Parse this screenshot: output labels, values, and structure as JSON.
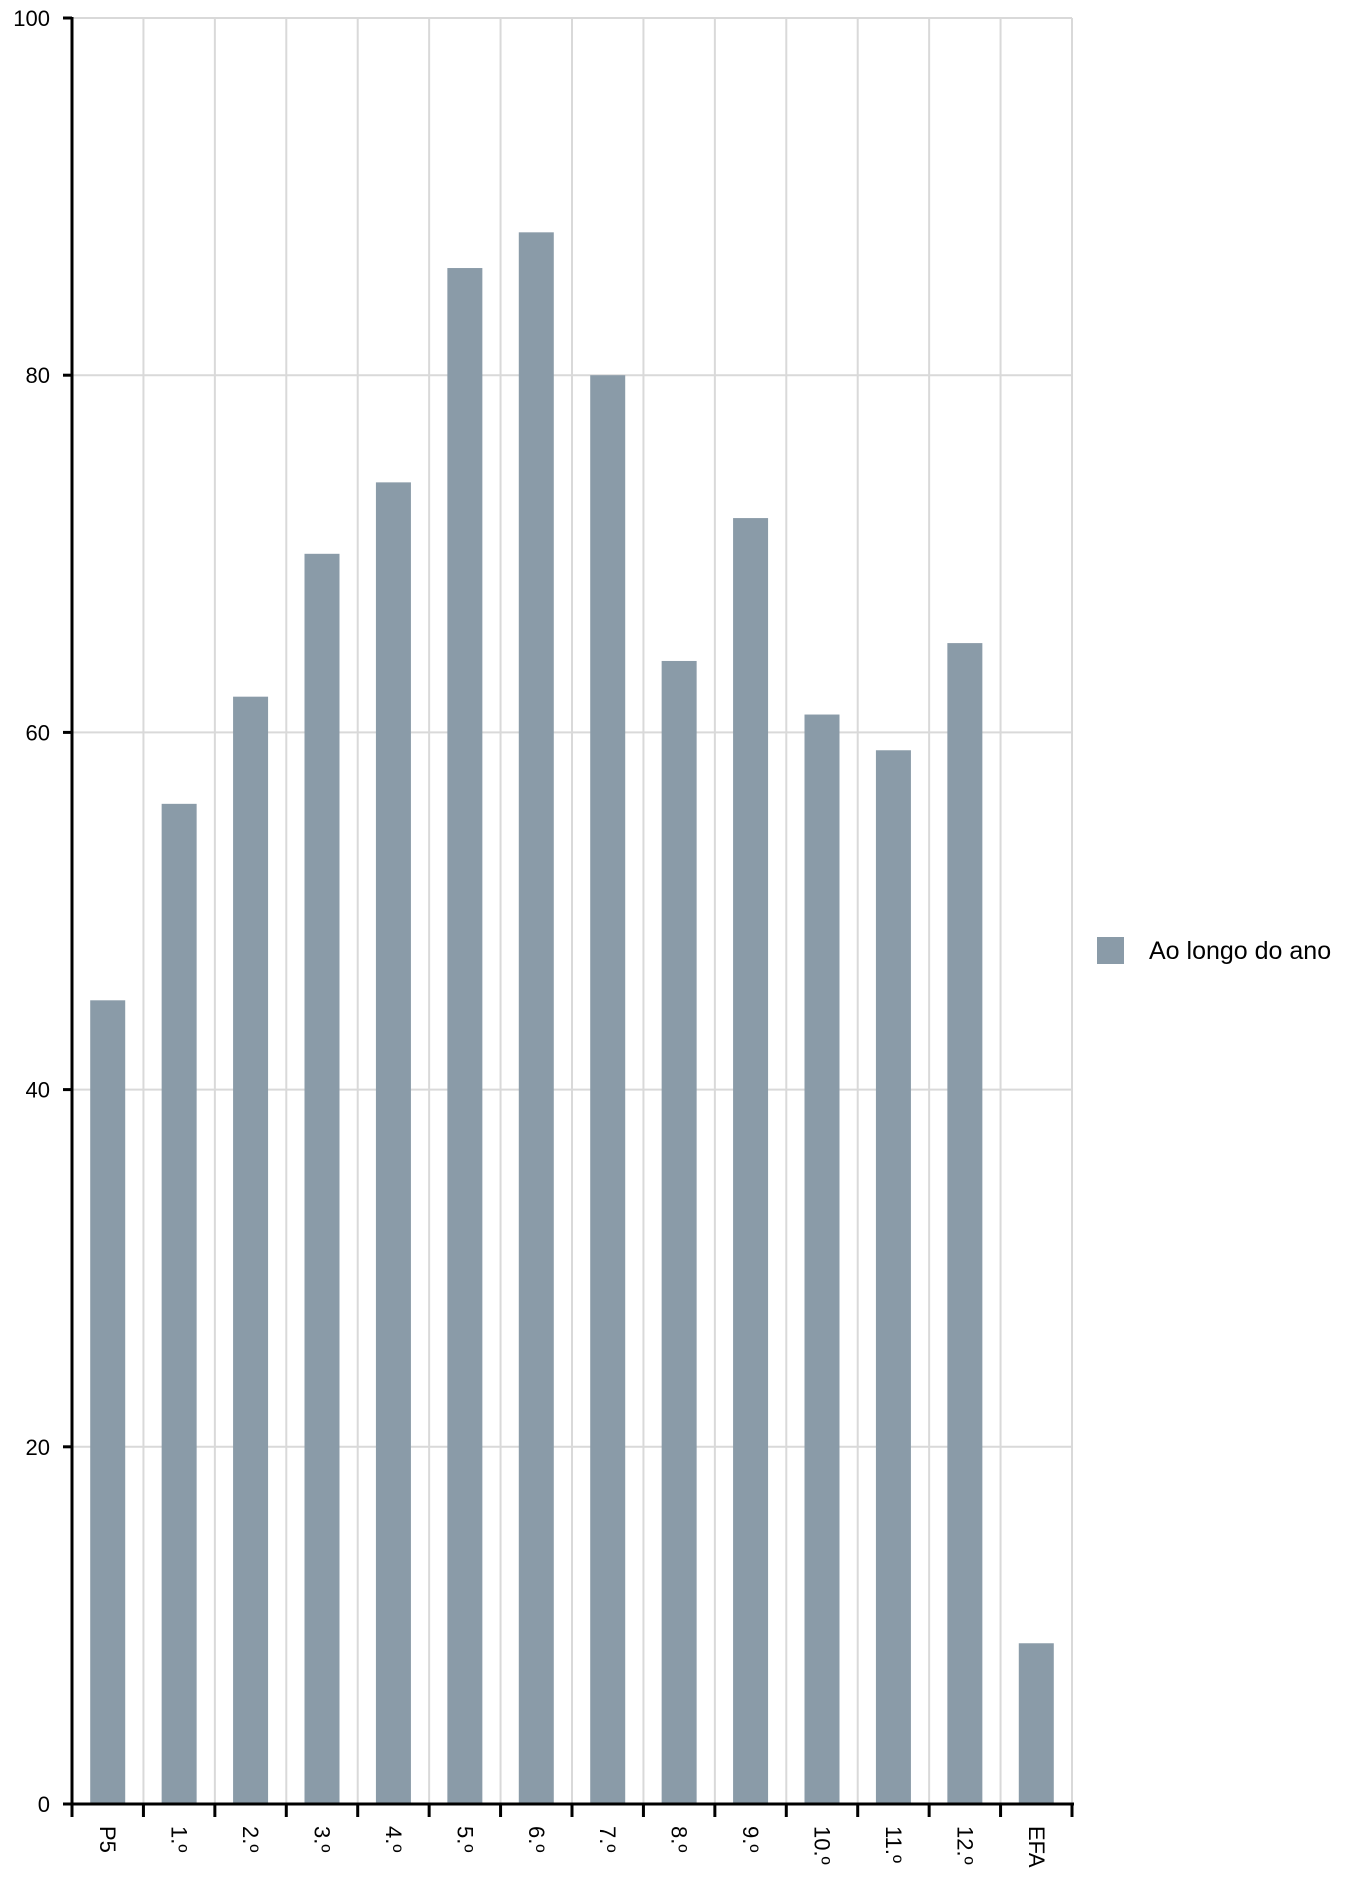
{
  "chart_data": {
    "type": "bar",
    "categories": [
      "P5",
      "1.º",
      "2.º",
      "3.º",
      "4.º",
      "5.º",
      "6.º",
      "7.º",
      "8.º",
      "9.º",
      "10.º",
      "11.º",
      "12.º",
      "EFA"
    ],
    "series": [
      {
        "name": "Ao longo do ano",
        "values": [
          45,
          56,
          62,
          70,
          74,
          86,
          88,
          80,
          64,
          72,
          61,
          59,
          65,
          9
        ],
        "color": "#8a9ba8"
      }
    ],
    "ylim": [
      0,
      100
    ],
    "yticks": [
      0,
      20,
      40,
      60,
      80,
      100
    ],
    "grid": true,
    "legend_position": "right",
    "x_tick_orientation": "rotated-90-clockwise"
  }
}
